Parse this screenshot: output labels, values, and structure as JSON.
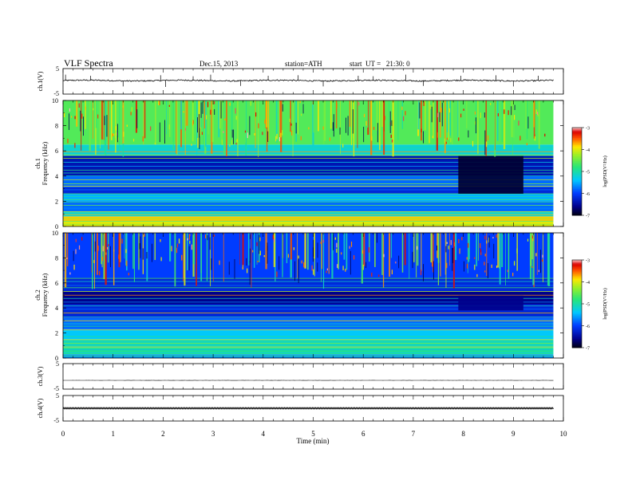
{
  "header": {
    "title": "VLF Spectra",
    "date": "Dec.15, 2013",
    "station": "station=ATH",
    "start": "start  UT =   21:30: 0"
  },
  "chart_data": [
    {
      "type": "line",
      "panel": "ch1-waveform",
      "ylabel": "ch.1(V)",
      "ylim": [
        -5,
        5
      ],
      "yticks": [
        "5",
        "-5"
      ],
      "baseline_v": 0.3,
      "noise_v": 0.25,
      "spikes": [
        {
          "t": 0.05,
          "v": 2.6
        },
        {
          "t": 0.55,
          "v": 2.2
        },
        {
          "t": 1.2,
          "v": -2.0
        },
        {
          "t": 1.95,
          "v": 2.4
        },
        {
          "t": 2.05,
          "v": -2.2
        },
        {
          "t": 2.6,
          "v": 2.0
        },
        {
          "t": 2.95,
          "v": 2.6
        },
        {
          "t": 3.55,
          "v": -1.8
        },
        {
          "t": 4.1,
          "v": 2.2
        },
        {
          "t": 4.7,
          "v": 2.4
        },
        {
          "t": 5.2,
          "v": -2.0
        },
        {
          "t": 5.9,
          "v": 2.2
        },
        {
          "t": 6.2,
          "v": 2.0
        },
        {
          "t": 6.85,
          "v": 2.6
        },
        {
          "t": 7.2,
          "v": -1.8
        },
        {
          "t": 7.95,
          "v": 2.2
        },
        {
          "t": 8.65,
          "v": 2.4
        },
        {
          "t": 9.0,
          "v": -2.0
        },
        {
          "t": 9.5,
          "v": 2.2
        }
      ],
      "xlim": [
        0,
        10
      ],
      "data_end_min": 9.8
    },
    {
      "type": "heatmap",
      "panel": "ch1-spectrogram",
      "ylabel": "ch.1\nFrequency (kHz)",
      "xlim": [
        0,
        10
      ],
      "ylim": [
        0,
        10
      ],
      "yticks": [
        "0",
        "2",
        "4",
        "6",
        "8",
        "10"
      ],
      "data_end_min": 9.8,
      "colorbar": {
        "label": "log(PSD(V²/Hz)",
        "range": [
          -7,
          -3
        ],
        "ticks": [
          "-3",
          "-4",
          "-5",
          "-6",
          "-7"
        ]
      },
      "band_edges_khz": [
        0,
        0.4,
        0.8,
        1.2,
        2.0,
        2.6,
        3.1,
        4.0,
        5.6,
        6.5,
        10
      ],
      "band_log_psd": [
        -4.0,
        -3.8,
        -5.2,
        -5.8,
        -5.5,
        -6.2,
        -5.8,
        -6.4,
        -5.2,
        -4.6
      ],
      "quiet_interval": {
        "start_min": 7.9,
        "end_min": 9.2,
        "low_khz": 2.6,
        "high_khz": 5.6,
        "log_psd": -6.9
      },
      "sferic_density_per_min": 14
    },
    {
      "type": "heatmap",
      "panel": "ch2-spectrogram",
      "ylabel": "ch.2\nFrequency (kHz)",
      "xlim": [
        0,
        10
      ],
      "ylim": [
        0,
        10
      ],
      "yticks": [
        "0",
        "2",
        "4",
        "6",
        "8",
        "10"
      ],
      "data_end_min": 9.8,
      "colorbar": {
        "label": "log(PSD(V²/Hz)",
        "range": [
          -7,
          -3
        ],
        "ticks": [
          "-3",
          "-4",
          "-5",
          "-6",
          "-7"
        ]
      },
      "band_edges_khz": [
        0,
        0.3,
        0.8,
        1.5,
        2.3,
        3.2,
        4.3,
        5.3,
        6.4,
        10
      ],
      "band_log_psd": [
        -5.6,
        -4.9,
        -5.1,
        -5.4,
        -5.8,
        -6.2,
        -6.6,
        -6.2,
        -6.0
      ],
      "quiet_interval": {
        "start_min": 7.9,
        "end_min": 9.2,
        "low_khz": 3.8,
        "high_khz": 5.0,
        "log_psd": -6.6
      },
      "sferic_density_per_min": 12
    },
    {
      "type": "line",
      "panel": "ch3-waveform",
      "ylabel": "ch.3(V)",
      "ylim": [
        -5,
        5
      ],
      "yticks": [
        "5",
        "-5"
      ],
      "baseline_v": 0.0,
      "noise_v": 0.03,
      "xlim": [
        0,
        10
      ],
      "data_end_min": 9.8
    },
    {
      "type": "line",
      "panel": "ch4-waveform",
      "ylabel": "ch.4(V)",
      "ylim": [
        -5,
        5
      ],
      "yticks": [
        "5",
        "-5"
      ],
      "baseline_v": 0.0,
      "noise_v": 0.25,
      "xlim": [
        0,
        10
      ],
      "data_end_min": 9.8
    }
  ],
  "xaxis": {
    "label": "Time (min)",
    "ticks": [
      "0",
      "1",
      "2",
      "3",
      "4",
      "5",
      "6",
      "7",
      "8",
      "9",
      "10"
    ]
  }
}
